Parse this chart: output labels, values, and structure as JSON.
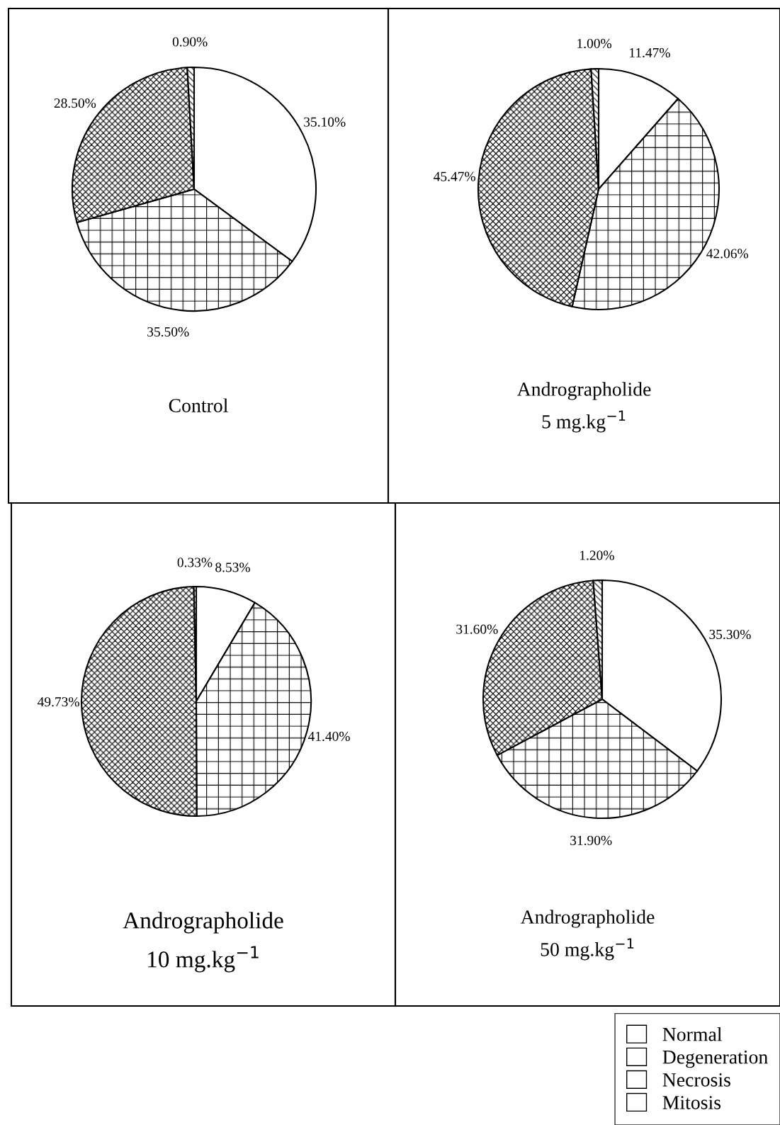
{
  "chart_data": [
    {
      "type": "pie",
      "title": "Control",
      "categories": [
        "Normal",
        "Degeneration",
        "Necrosis",
        "Mitosis"
      ],
      "values": [
        35.1,
        35.5,
        28.5,
        0.9
      ],
      "value_labels": [
        "35.10%",
        "35.50%",
        "28.50%",
        "0.90%"
      ],
      "colors": [
        "#ffffff",
        "#ffffff",
        "#ffffff",
        "#ffffff"
      ],
      "legend": "bottom right"
    },
    {
      "type": "pie",
      "title": "Andrographolide\n5 mg.kg$^{−1}$",
      "categories": [
        null,
        null,
        null,
        null
      ],
      "values": [
        11.47,
        42.06,
        45.47,
        1.0
      ],
      "value_labels": [
        "11.47%",
        "42.06%",
        "45.47%",
        "1.00%"
      ],
      "colors": [
        "#ffffff",
        "#ffffff",
        "#ffffff",
        "#ffffff"
      ]
    },
    {
      "type": "pie",
      "title": "Andrographolide\n10 mg.kg$^{−1}$",
      "categories": [
        null,
        null,
        null,
        null
      ],
      "values": [
        8.53,
        41.4,
        49.73,
        0.33
      ],
      "value_labels": [
        "8.53%",
        "41.40%",
        "49.73%",
        "0.33%"
      ],
      "colors": [
        "#ffffff",
        "#ffffff",
        "#ffffff",
        "#ffffff"
      ]
    },
    {
      "type": "pie",
      "title": "Andrographolide\n50 mg.kg$^{−1}$",
      "categories": [
        null,
        null,
        null,
        null
      ],
      "values": [
        35.3,
        31.9,
        31.6,
        1.2
      ],
      "value_labels": [
        "35.30%",
        "31.90%",
        "31.60%",
        "1.20%"
      ],
      "colors": [
        "#ffffff",
        "#ffffff",
        "#ffffff",
        "#ffffff"
      ]
    }
  ]
}
